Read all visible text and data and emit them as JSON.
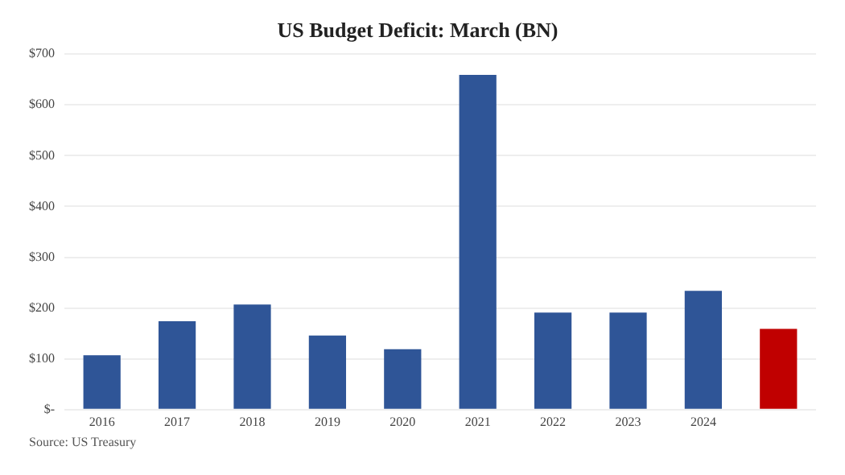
{
  "chart_data": {
    "type": "bar",
    "title": "US Budget Deficit: March (BN)",
    "categories": [
      "2016",
      "2017",
      "2018",
      "2019",
      "2020",
      "2021",
      "2022",
      "2023",
      "2024",
      null
    ],
    "values": [
      107,
      174,
      207,
      146,
      119,
      659,
      191,
      191,
      234,
      159
    ],
    "colors": [
      "#2f5597",
      "#2f5597",
      "#2f5597",
      "#2f5597",
      "#2f5597",
      "#2f5597",
      "#2f5597",
      "#2f5597",
      "#2f5597",
      "#c00000"
    ],
    "ylim": [
      0,
      700
    ],
    "yticks": [
      {
        "value": 0,
        "label": "$-"
      },
      {
        "value": 100,
        "label": "$100"
      },
      {
        "value": 200,
        "label": "$200"
      },
      {
        "value": 300,
        "label": "$300"
      },
      {
        "value": 400,
        "label": "$400"
      },
      {
        "value": 500,
        "label": "$500"
      },
      {
        "value": 600,
        "label": "$600"
      },
      {
        "value": 700,
        "label": "$700"
      }
    ],
    "grid": "y",
    "annotations": [
      "Source: US Treasury"
    ]
  }
}
